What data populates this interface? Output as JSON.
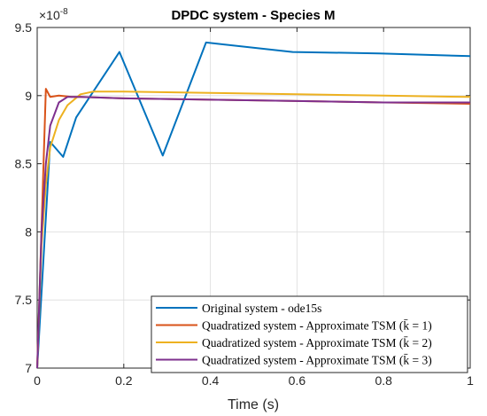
{
  "chart_data": {
    "type": "line",
    "title": "DPDC system - Species M",
    "xlabel": "Time (s)",
    "ylabel": "",
    "y_exponent_label": "×10",
    "y_exponent_power": "-8",
    "xlim": [
      0,
      1
    ],
    "ylim": [
      7,
      9.5
    ],
    "x_ticks": [
      0,
      0.2,
      0.4,
      0.6,
      0.8,
      1
    ],
    "x_tick_labels": [
      "0",
      "0.2",
      "0.4",
      "0.6",
      "0.8",
      "1"
    ],
    "y_ticks": [
      7,
      7.5,
      8,
      8.5,
      9,
      9.5
    ],
    "y_tick_labels": [
      "7",
      "7.5",
      "8",
      "8.5",
      "9",
      "9.5"
    ],
    "grid": true,
    "legend_position": "bottom-right",
    "series": [
      {
        "name": "Original system - ode15s",
        "color": "#0072BD",
        "x": [
          0,
          0.03,
          0.06,
          0.09,
          0.19,
          0.29,
          0.39,
          0.59,
          0.79,
          1.0
        ],
        "y": [
          7.0,
          8.66,
          8.55,
          8.84,
          9.32,
          8.56,
          9.39,
          9.32,
          9.31,
          9.29
        ]
      },
      {
        "name": "Quadratized system - Approximate TSM (k̄ = 1)",
        "color": "#D95319",
        "x": [
          0,
          0.02,
          0.03,
          0.05,
          0.08,
          0.1,
          0.2,
          0.4,
          0.6,
          0.8,
          1.0
        ],
        "y": [
          7.0,
          9.05,
          8.99,
          9.0,
          8.99,
          8.99,
          8.98,
          8.97,
          8.96,
          8.95,
          8.94
        ]
      },
      {
        "name": "Quadratized system - Approximate TSM (k̄ = 2)",
        "color": "#EDB120",
        "x": [
          0,
          0.01,
          0.02,
          0.03,
          0.05,
          0.07,
          0.1,
          0.13,
          0.2,
          0.4,
          0.6,
          0.8,
          1.0
        ],
        "y": [
          7.0,
          7.9,
          8.35,
          8.62,
          8.82,
          8.93,
          9.01,
          9.03,
          9.03,
          9.02,
          9.01,
          9.0,
          8.99
        ]
      },
      {
        "name": "Quadratized system - Approximate TSM (k̄ = 3)",
        "color": "#7E2F8E",
        "x": [
          0,
          0.01,
          0.02,
          0.03,
          0.05,
          0.07,
          0.1,
          0.2,
          0.4,
          0.6,
          0.8,
          1.0
        ],
        "y": [
          7.0,
          8.0,
          8.5,
          8.78,
          8.95,
          8.99,
          8.99,
          8.98,
          8.97,
          8.96,
          8.95,
          8.95
        ]
      }
    ]
  }
}
